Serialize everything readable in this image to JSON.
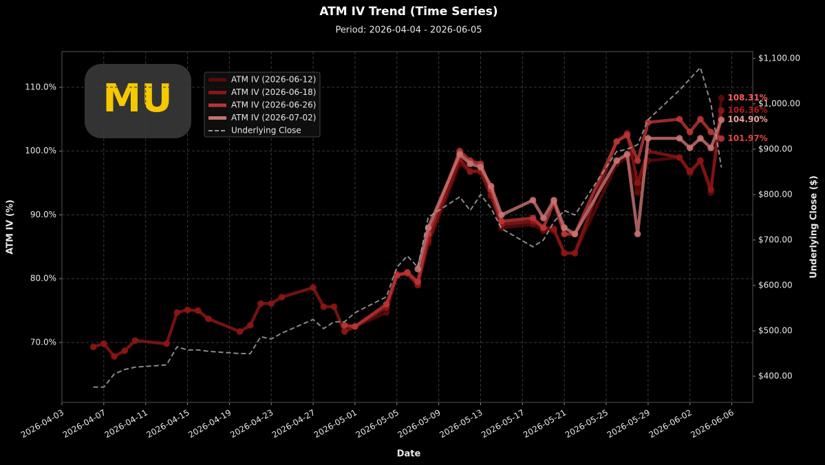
{
  "chart_data": {
    "type": "line",
    "title": "ATM IV Trend (Time Series)",
    "subtitle": "Period: 2026-04-04 - 2026-06-05",
    "logo": "MU",
    "x_label": "Date",
    "y_label": "ATM IV (%)",
    "y2_label": "Underlying Close ($)",
    "x": [
      "2026-04-06",
      "2026-04-07",
      "2026-04-08",
      "2026-04-09",
      "2026-04-10",
      "2026-04-13",
      "2026-04-14",
      "2026-04-15",
      "2026-04-16",
      "2026-04-17",
      "2026-04-20",
      "2026-04-21",
      "2026-04-22",
      "2026-04-23",
      "2026-04-24",
      "2026-04-27",
      "2026-04-28",
      "2026-04-29",
      "2026-04-30",
      "2026-05-01",
      "2026-05-04",
      "2026-05-05",
      "2026-05-06",
      "2026-05-07",
      "2026-05-08",
      "2026-05-11",
      "2026-05-12",
      "2026-05-13",
      "2026-05-14",
      "2026-05-15",
      "2026-05-18",
      "2026-05-19",
      "2026-05-20",
      "2026-05-21",
      "2026-05-22",
      "2026-05-26",
      "2026-05-27",
      "2026-05-28",
      "2026-05-29",
      "2026-06-01",
      "2026-06-02",
      "2026-06-03",
      "2026-06-04",
      "2026-06-05"
    ],
    "xlim": [
      "2026-04-03",
      "2026-06-08"
    ],
    "xticks": [
      "2026-04-03",
      "2026-04-07",
      "2026-04-11",
      "2026-04-15",
      "2026-04-19",
      "2026-04-23",
      "2026-04-27",
      "2026-05-01",
      "2026-05-05",
      "2026-05-09",
      "2026-05-13",
      "2026-05-17",
      "2026-05-21",
      "2026-05-25",
      "2026-05-29",
      "2026-06-02",
      "2026-06-06"
    ],
    "ylim": [
      60.6,
      115.6
    ],
    "yticks": [
      {
        "value": 70,
        "label": "70.0%"
      },
      {
        "value": 80,
        "label": "80.0%"
      },
      {
        "value": 90,
        "label": "90.0%"
      },
      {
        "value": 100,
        "label": "100.0%"
      },
      {
        "value": 110,
        "label": "110.0%"
      }
    ],
    "y2lim": [
      342.4,
      1115
    ],
    "y2ticks": [
      {
        "value": 400,
        "label": "$400.00"
      },
      {
        "value": 500,
        "label": "$500.00"
      },
      {
        "value": 600,
        "label": "$600.00"
      },
      {
        "value": 700,
        "label": "$700.00"
      },
      {
        "value": 800,
        "label": "$800.00"
      },
      {
        "value": 900,
        "label": "$900.00"
      },
      {
        "value": 1000,
        "label": "$1,000.00"
      },
      {
        "value": 1100,
        "label": "$1,100.00"
      }
    ],
    "grid": true,
    "legend": "upper left",
    "series": [
      {
        "name": "ATM IV (2026-06-12)",
        "color": "#5e0b0b",
        "label_color": "#ff5b5b",
        "values": [
          null,
          null,
          null,
          null,
          null,
          null,
          null,
          null,
          null,
          null,
          null,
          null,
          null,
          null,
          null,
          null,
          null,
          null,
          72.5,
          72.5,
          74.7,
          80.5,
          80.8,
          79.0,
          85.5,
          98.0,
          96.8,
          97.0,
          93.5,
          88.0,
          88.5,
          87.5,
          87.5,
          84.0,
          84.0,
          98.0,
          99.0,
          93.5,
          98.5,
          99.0,
          96.5,
          98.5,
          93.5,
          108.31
        ],
        "value_labels": [
          null,
          null,
          null,
          null,
          null,
          null,
          null,
          null,
          null,
          null,
          null,
          null,
          null,
          null,
          null,
          null,
          null,
          null,
          null,
          null,
          null,
          null,
          null,
          null,
          null,
          null,
          null,
          null,
          null,
          null,
          null,
          null,
          null,
          null,
          null,
          null,
          null,
          null,
          null,
          null,
          null,
          null,
          null,
          "108.31%"
        ]
      },
      {
        "name": "ATM IV (2026-06-18)",
        "color": "#8e1616",
        "label_color": "#b01c1c",
        "values": [
          69.3,
          69.8,
          67.8,
          68.7,
          70.3,
          69.8,
          74.7,
          75.1,
          75.0,
          73.7,
          71.7,
          72.7,
          76.1,
          76.1,
          77.1,
          78.6,
          75.6,
          75.6,
          71.7,
          72.5,
          75.5,
          80.7,
          80.8,
          79.0,
          86.0,
          98.8,
          96.8,
          96.8,
          93.0,
          88.5,
          89.0,
          88.0,
          87.8,
          84.0,
          84.0,
          101.5,
          102.8,
          95.0,
          100.0,
          99.0,
          96.8,
          98.5,
          94.0,
          106.36
        ],
        "value_labels": [
          null,
          null,
          null,
          null,
          null,
          null,
          null,
          null,
          null,
          null,
          null,
          null,
          null,
          null,
          null,
          null,
          null,
          null,
          null,
          null,
          null,
          null,
          null,
          null,
          null,
          null,
          null,
          null,
          null,
          null,
          null,
          null,
          null,
          null,
          null,
          null,
          null,
          null,
          null,
          null,
          null,
          null,
          null,
          "106.36%"
        ]
      },
      {
        "name": "ATM IV (2026-06-26)",
        "color": "#b83535",
        "label_color": "#e04545",
        "values": [
          null,
          null,
          null,
          null,
          null,
          null,
          null,
          null,
          null,
          null,
          null,
          null,
          null,
          null,
          null,
          null,
          null,
          null,
          72.7,
          72.5,
          76.0,
          80.5,
          81.0,
          79.5,
          87.0,
          100.0,
          98.5,
          98.0,
          94.0,
          89.0,
          89.5,
          88.0,
          92.0,
          87.0,
          87.0,
          101.5,
          102.5,
          98.5,
          104.5,
          105.0,
          103.0,
          105.0,
          103.0,
          101.97
        ],
        "value_labels": [
          null,
          null,
          null,
          null,
          null,
          null,
          null,
          null,
          null,
          null,
          null,
          null,
          null,
          null,
          null,
          null,
          null,
          null,
          null,
          null,
          null,
          null,
          null,
          null,
          null,
          null,
          null,
          null,
          null,
          null,
          null,
          null,
          null,
          null,
          null,
          null,
          null,
          null,
          null,
          null,
          null,
          null,
          null,
          "101.97%"
        ]
      },
      {
        "name": "ATM IV (2026-07-02)",
        "color": "#c77272",
        "label_color": "#f0a0a0",
        "values": [
          null,
          null,
          null,
          null,
          null,
          null,
          null,
          null,
          null,
          null,
          null,
          null,
          null,
          null,
          null,
          null,
          null,
          null,
          null,
          null,
          null,
          null,
          null,
          81.5,
          88.0,
          99.5,
          98.0,
          97.5,
          94.5,
          90.0,
          92.3,
          89.5,
          92.3,
          88.0,
          87.0,
          98.5,
          99.5,
          87.0,
          102.0,
          102.0,
          100.5,
          102.0,
          100.5,
          104.9
        ],
        "value_labels": [
          null,
          null,
          null,
          null,
          null,
          null,
          null,
          null,
          null,
          null,
          null,
          null,
          null,
          null,
          null,
          null,
          null,
          null,
          null,
          null,
          null,
          null,
          null,
          null,
          null,
          null,
          null,
          null,
          null,
          null,
          null,
          null,
          null,
          null,
          null,
          null,
          null,
          null,
          null,
          null,
          null,
          null,
          null,
          "104.90%"
        ]
      },
      {
        "name": "Underlying Close",
        "color": "#9a9a9a",
        "axis": "y2",
        "line_style": "dashed",
        "values": [
          376,
          376,
          405,
          415,
          420,
          425,
          465,
          458,
          458,
          455,
          450,
          450,
          487,
          482,
          495,
          525,
          505,
          520,
          520,
          540,
          575,
          640,
          665,
          640,
          750,
          795,
          765,
          800,
          770,
          725,
          685,
          700,
          740,
          765,
          755,
          895,
          900,
          910,
          965,
          1030,
          1055,
          1080,
          1000,
          860
        ]
      }
    ]
  }
}
